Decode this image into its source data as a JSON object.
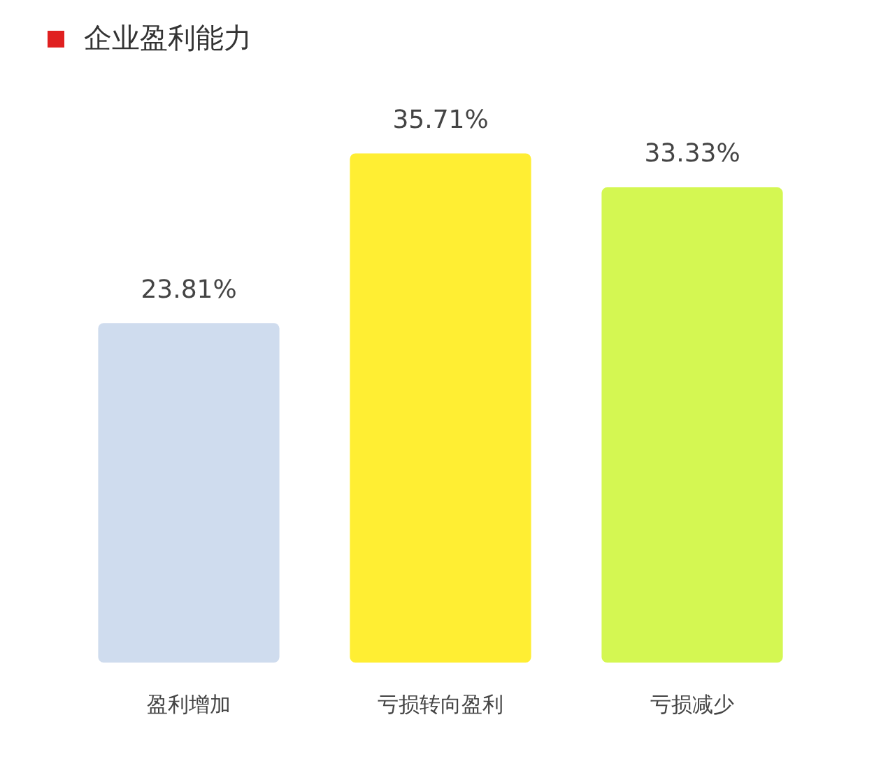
{
  "chart_data": {
    "type": "bar",
    "title": "企业盈利能力",
    "categories": [
      "盈利增加",
      "亏损转向盈利",
      "亏损减少"
    ],
    "values": [
      23.81,
      35.71,
      33.33
    ],
    "colors": [
      "#cfdcee",
      "#ffee33",
      "#d4f752"
    ],
    "value_labels": [
      "23.81%",
      "35.71%",
      "33.33%"
    ],
    "grid": false,
    "legend": false,
    "tick_labels": "x"
  }
}
